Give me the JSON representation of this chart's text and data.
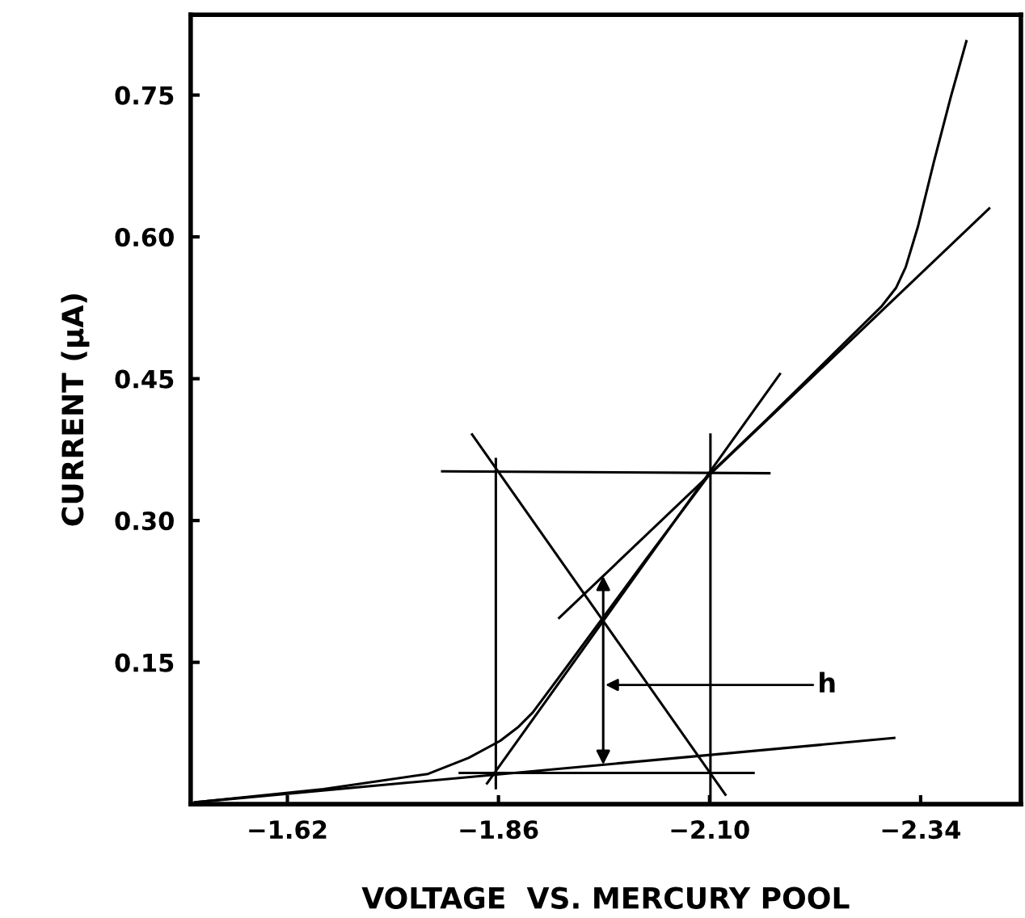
{
  "chart_data": {
    "type": "line",
    "xlabel": "VOLTAGE  VS. MERCURY POOL",
    "ylabel": "CURRENT (μA)",
    "xlim": [
      -1.51,
      -2.454
    ],
    "ylim": [
      0,
      0.835
    ],
    "xticks": [
      {
        "value": -1.62,
        "label": "−1.62"
      },
      {
        "value": -1.86,
        "label": "−1.86"
      },
      {
        "value": -2.1,
        "label": "−2.10"
      },
      {
        "value": -2.34,
        "label": "−2.34"
      }
    ],
    "yticks": [
      {
        "value": 0.15,
        "label": "0.15"
      },
      {
        "value": 0.3,
        "label": "0.30"
      },
      {
        "value": 0.45,
        "label": "0.45"
      },
      {
        "value": 0.6,
        "label": "0.60"
      },
      {
        "value": 0.75,
        "label": "0.75"
      }
    ],
    "grid": false,
    "legend": false,
    "marker": "none",
    "line_style": "solid",
    "series": [
      {
        "color": "#000000",
        "x": [
          -1.515,
          -1.661,
          -1.78,
          -1.826,
          -1.862,
          -1.883,
          -1.899,
          -1.935,
          -1.977,
          -2.027,
          -2.101,
          -2.164,
          -2.209,
          -2.296,
          -2.312,
          -2.323,
          -2.337,
          -2.355,
          -2.374,
          -2.392
        ],
        "values": [
          0.002,
          0.016,
          0.032,
          0.049,
          0.067,
          0.082,
          0.097,
          0.142,
          0.195,
          0.258,
          0.35,
          0.406,
          0.447,
          0.527,
          0.546,
          0.568,
          0.611,
          0.679,
          0.747,
          0.807
        ]
      },
      {
        "color": "#000000",
        "x": [
          -1.847,
          -2.18
        ],
        "values": [
          0.022,
          0.455
        ]
      },
      {
        "color": "#000000",
        "x": [
          -1.929,
          -2.418
        ],
        "values": [
          0.197,
          0.63
        ]
      },
      {
        "color": "#000000",
        "x": [
          -1.515,
          -2.31
        ],
        "values": [
          0.002,
          0.07
        ]
      },
      {
        "color": "#000000",
        "x": [
          -1.83,
          -2.118
        ],
        "values": [
          0.391,
          0.01
        ]
      },
      {
        "color": "#000000",
        "x": [
          -1.796,
          -2.168
        ],
        "values": [
          0.352,
          0.35
        ]
      },
      {
        "color": "#000000",
        "x": [
          -1.816,
          -2.15
        ],
        "values": [
          0.033,
          0.033
        ]
      },
      {
        "color": "#000000",
        "x": [
          -1.857,
          -1.857
        ],
        "values": [
          0.365,
          0.017
        ]
      },
      {
        "color": "#000000",
        "x": [
          -2.101,
          -2.101
        ],
        "values": [
          0.391,
          0.004
        ]
      }
    ],
    "annotations": [
      "h"
    ]
  }
}
